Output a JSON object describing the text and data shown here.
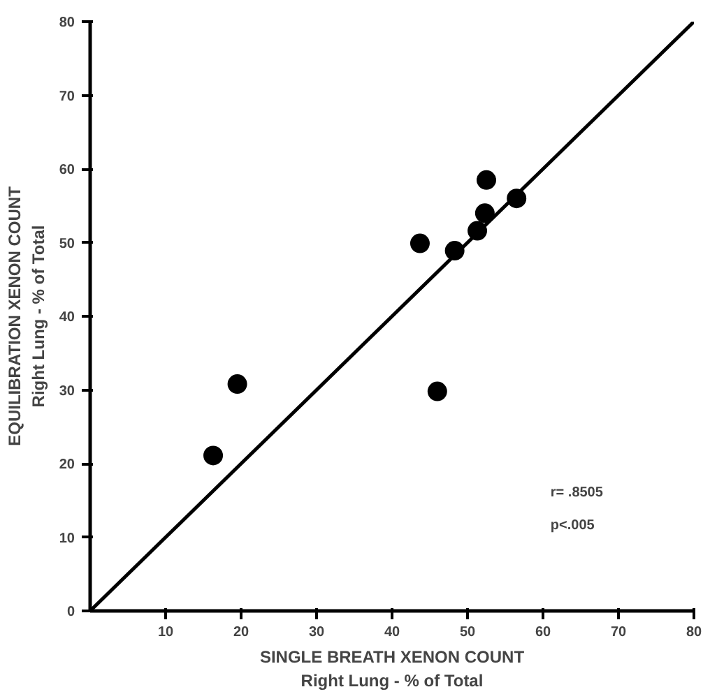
{
  "chart_data": {
    "type": "scatter",
    "xlabel": "SINGLE BREATH XENON COUNT\nRight Lung - % of Total",
    "ylabel": "EQUILIBRATION XENON COUNT\nRight Lung - % of Total",
    "xlim": [
      0,
      80
    ],
    "ylim": [
      0,
      80
    ],
    "xticks": [
      10,
      20,
      30,
      40,
      50,
      60,
      70,
      80
    ],
    "yticks": [
      0,
      10,
      20,
      30,
      40,
      50,
      60,
      70,
      80
    ],
    "grid": false,
    "series": [
      {
        "marker": "circle",
        "color": "#000000",
        "x": [
          43.7,
          48.3,
          51.3,
          52.3,
          52.5,
          56.5,
          19.5,
          16.3,
          46
        ],
        "values": [
          49.9,
          48.9,
          51.6,
          54,
          58.5,
          56,
          30.8,
          21.1,
          29.8
        ]
      },
      {
        "type": "line",
        "color": "#000000",
        "x": [
          0,
          80
        ],
        "values": [
          0,
          80
        ],
        "line_style": "solid"
      }
    ],
    "annotations": [
      "r= .8505",
      "p<.005"
    ]
  }
}
